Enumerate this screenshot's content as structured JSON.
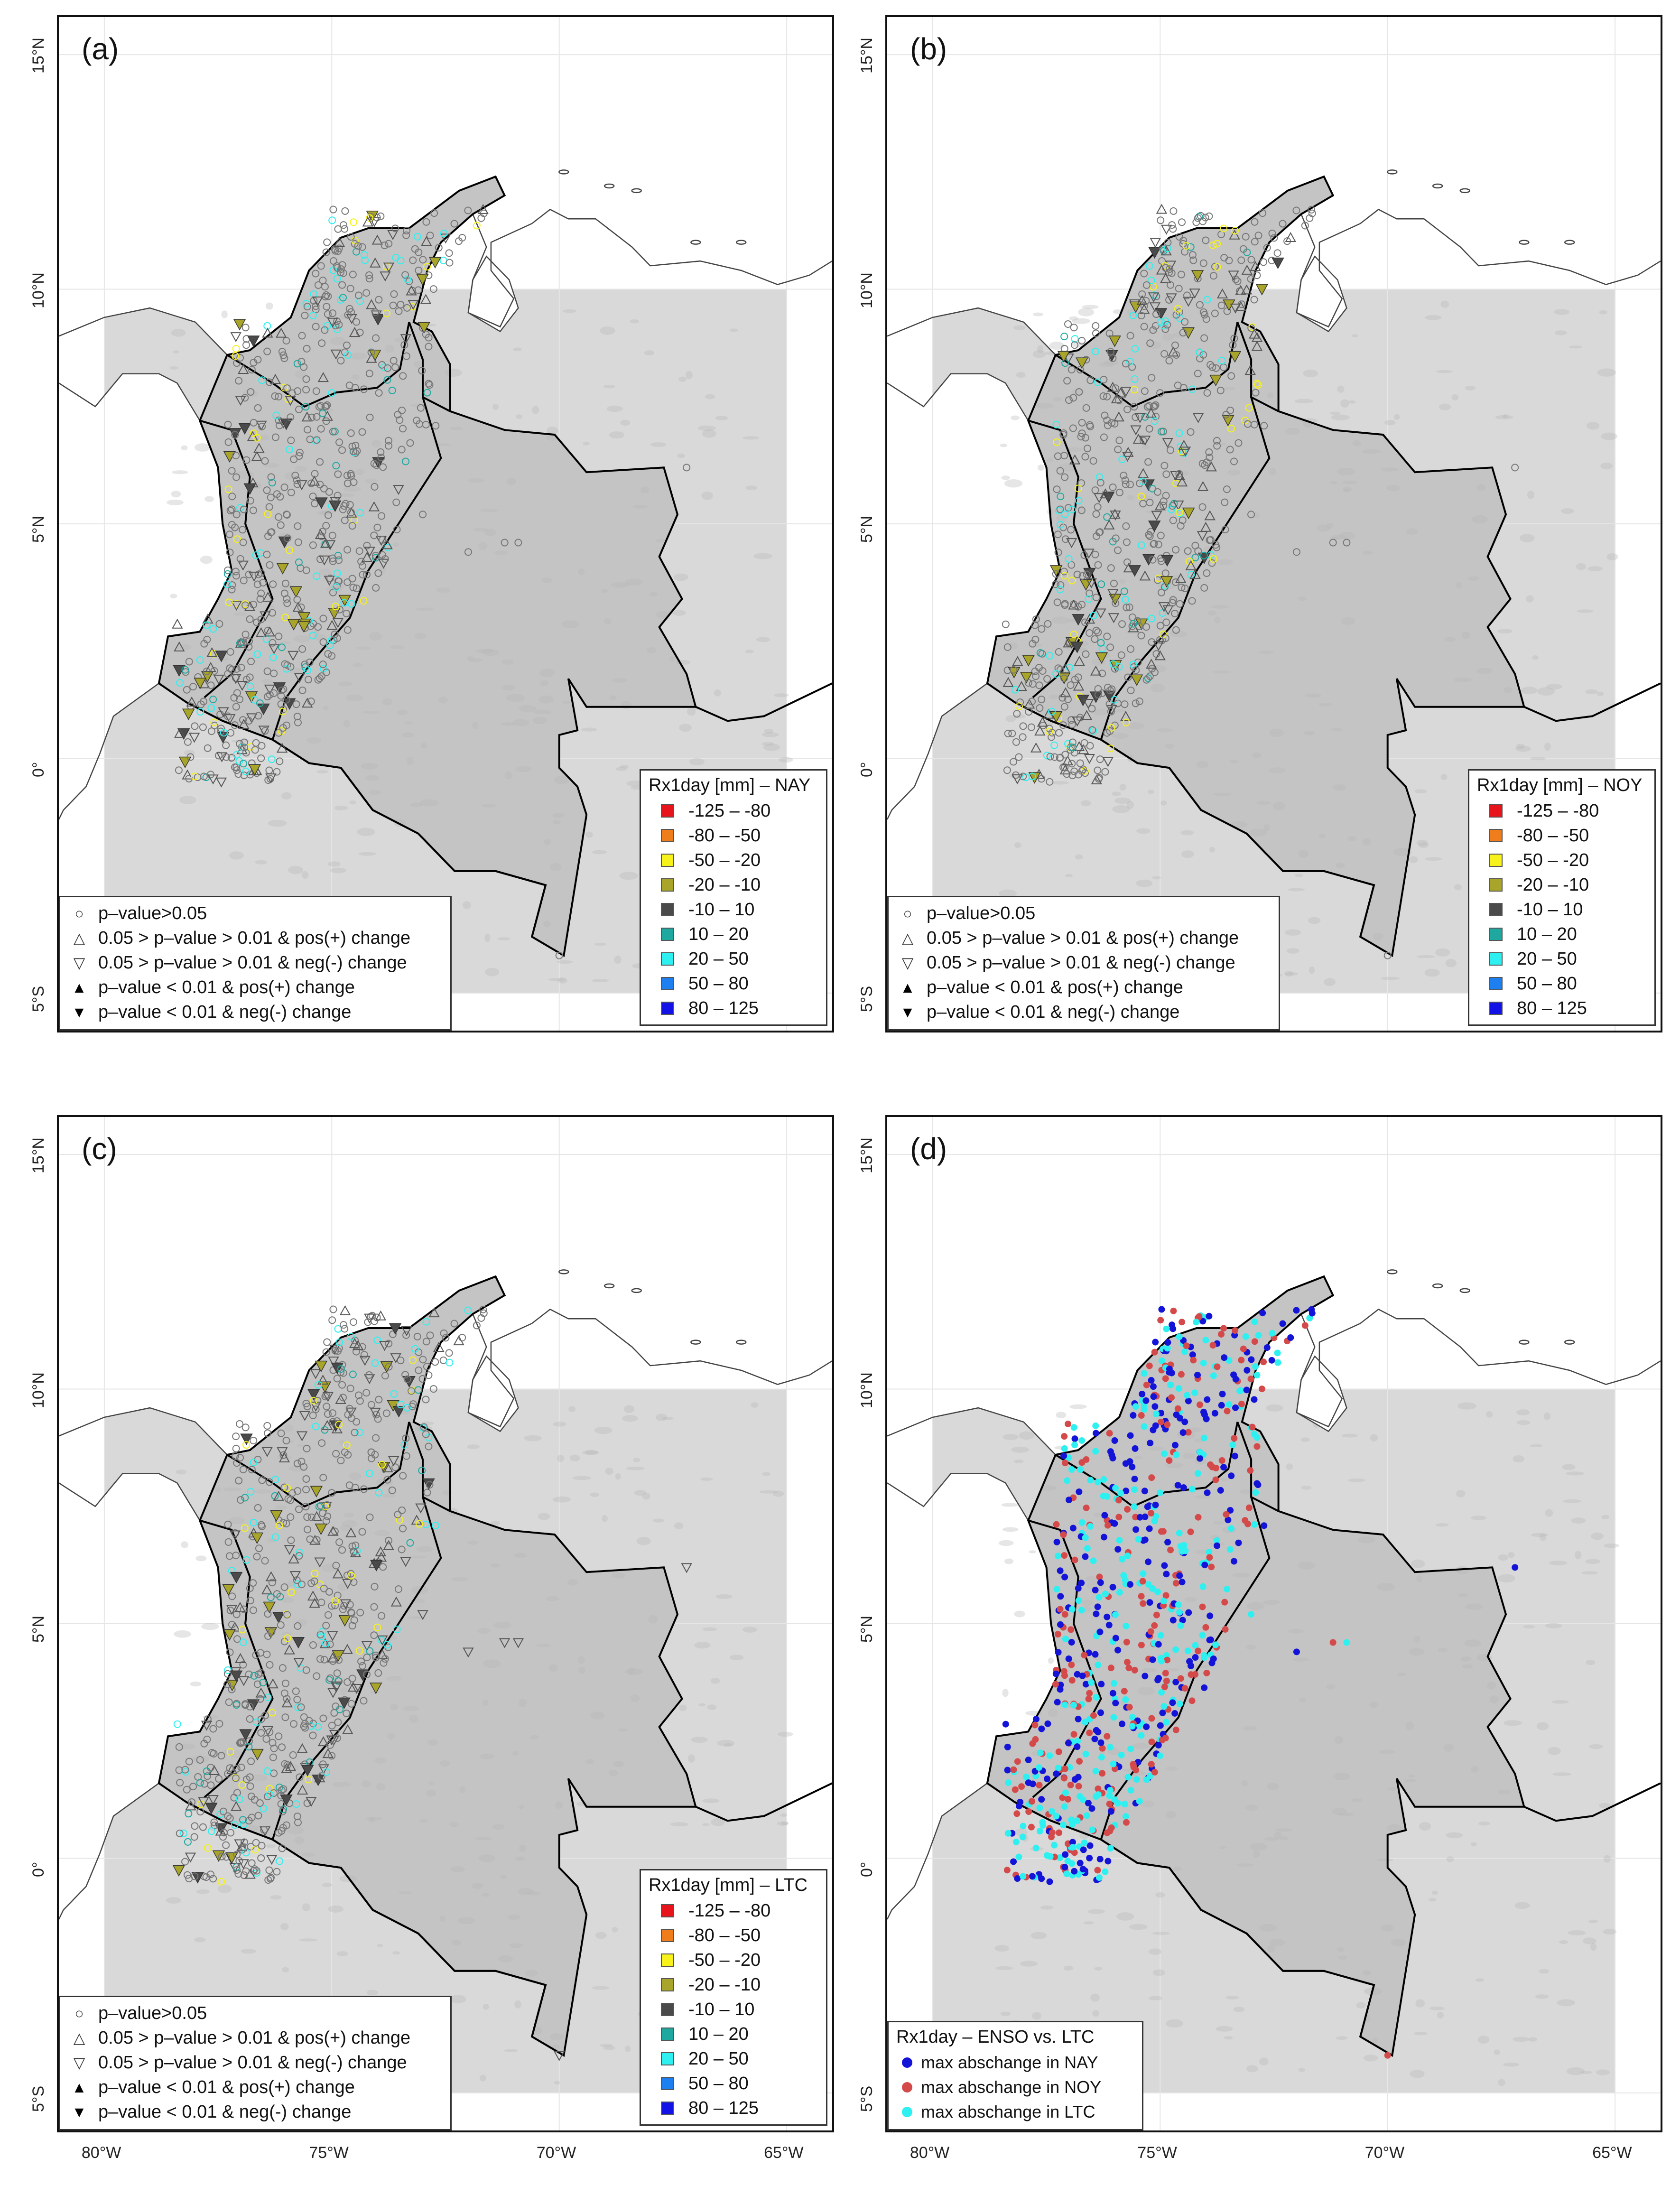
{
  "panels": [
    {
      "id": "a",
      "label": "(a)",
      "legend_title": "Rx1day [mm] – NAY",
      "mode": "sig"
    },
    {
      "id": "b",
      "label": "(b)",
      "legend_title": "Rx1day [mm] – NOY",
      "mode": "sig"
    },
    {
      "id": "c",
      "label": "(c)",
      "legend_title": "Rx1day [mm] – LTC",
      "mode": "sig"
    },
    {
      "id": "d",
      "label": "(d)",
      "legend_title": "Rx1day – ENSO vs. LTC",
      "mode": "enso"
    }
  ],
  "color_classes": [
    {
      "label": "-125 – -80",
      "color": "#e8141b"
    },
    {
      "label": "-80 – -50",
      "color": "#f07d1b"
    },
    {
      "label": "-50 – -20",
      "color": "#f7f21b"
    },
    {
      "label": "-20 – -10",
      "color": "#a8a52a"
    },
    {
      "label": "-10 – 10",
      "color": "#4a4a4a"
    },
    {
      "label": "10 – 20",
      "color": "#1fa8a0"
    },
    {
      "label": "20 – 50",
      "color": "#2ff0f0"
    },
    {
      "label": "50 – 80",
      "color": "#1d7ff0"
    },
    {
      "label": "80 – 125",
      "color": "#1212e6"
    }
  ],
  "significance_legend": [
    {
      "symbol": "○",
      "label": "p–value>0.05",
      "filled": false
    },
    {
      "symbol": "△",
      "label": "0.05 > p–value > 0.01 & pos(+) change",
      "filled": false
    },
    {
      "symbol": "▽",
      "label": "0.05 > p–value > 0.01 & neg(-) change",
      "filled": false
    },
    {
      "symbol": "▲",
      "label": "p–value < 0.01 & pos(+) change",
      "filled": true
    },
    {
      "symbol": "▼",
      "label": "p–value < 0.01 & neg(-) change",
      "filled": true
    }
  ],
  "enso_legend": [
    {
      "label": "max abschange in NAY",
      "color": "#1414d8"
    },
    {
      "label": "max abschange in NOY",
      "color": "#d44a4a"
    },
    {
      "label": "max abschange in LTC",
      "color": "#2ff0f0"
    }
  ],
  "axes": {
    "x_ticks": [
      {
        "value": -80,
        "label": "80°W"
      },
      {
        "value": -75,
        "label": "75°W"
      },
      {
        "value": -70,
        "label": "70°W"
      },
      {
        "value": -65,
        "label": "65°W"
      }
    ],
    "y_ticks": [
      {
        "value": 15,
        "label": "15°N"
      },
      {
        "value": 10,
        "label": "10°N"
      },
      {
        "value": 5,
        "label": "5°N"
      },
      {
        "value": 0,
        "label": "0°"
      },
      {
        "value": -5,
        "label": "5°S"
      }
    ],
    "lon_range": [
      -81.0,
      -64.0
    ],
    "lat_range": [
      -5.8,
      15.8
    ],
    "data_extent": {
      "lon": [
        -80,
        -65
      ],
      "lat": [
        -5,
        10
      ]
    }
  },
  "colors": {
    "land_shade": "#d9d9d9",
    "colombia": "#c4c4c4",
    "border": "#000000",
    "coast": "#444444"
  }
}
